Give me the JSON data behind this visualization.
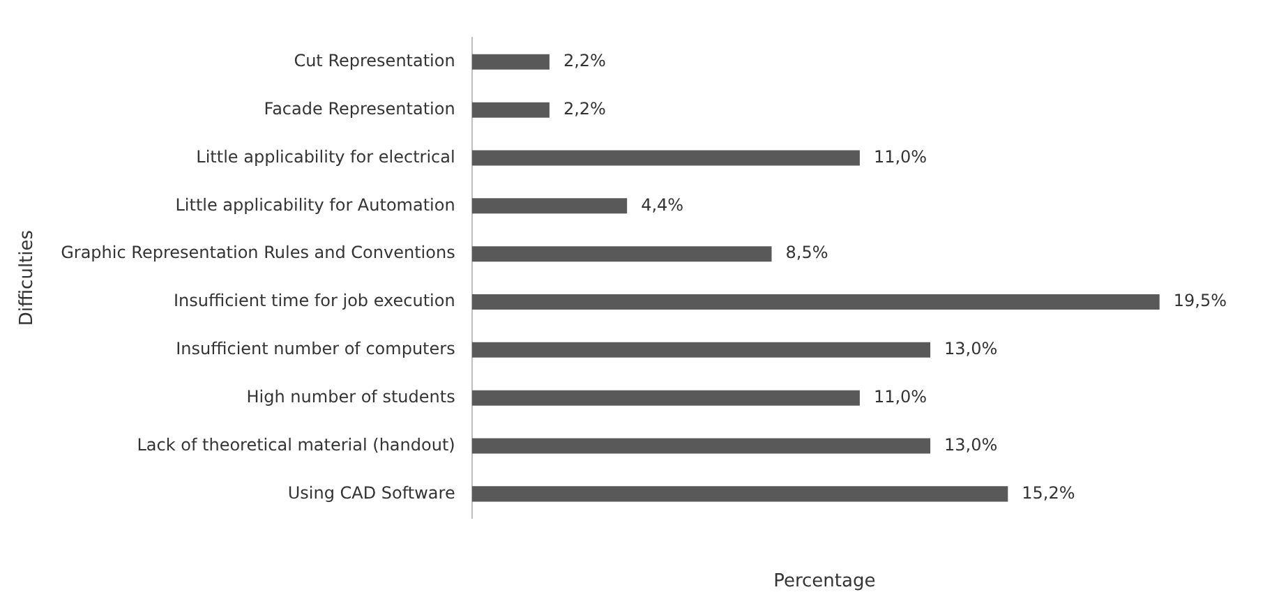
{
  "chart_data": {
    "type": "bar",
    "orientation": "horizontal",
    "xlabel": "Percentage",
    "ylabel": "Difficulties",
    "color": "#595959",
    "categories": [
      "Cut Representation",
      "Facade Representation",
      "Little applicability for electrical",
      "Little applicability for Automation",
      "Graphic Representation Rules and Conventions",
      "Insufficient time for job execution",
      "Insufficient number of computers",
      "High number of students",
      "Lack of theoretical material (handout)",
      "Using CAD Software"
    ],
    "values": [
      2.2,
      2.2,
      11.0,
      4.4,
      8.5,
      19.5,
      13.0,
      11.0,
      13.0,
      15.2
    ],
    "value_labels": [
      "2,2%",
      "2,2%",
      "11,0%",
      "4,4%",
      "8,5%",
      "19,5%",
      "13,0%",
      "11,0%",
      "13,0%",
      "15,2%"
    ]
  }
}
